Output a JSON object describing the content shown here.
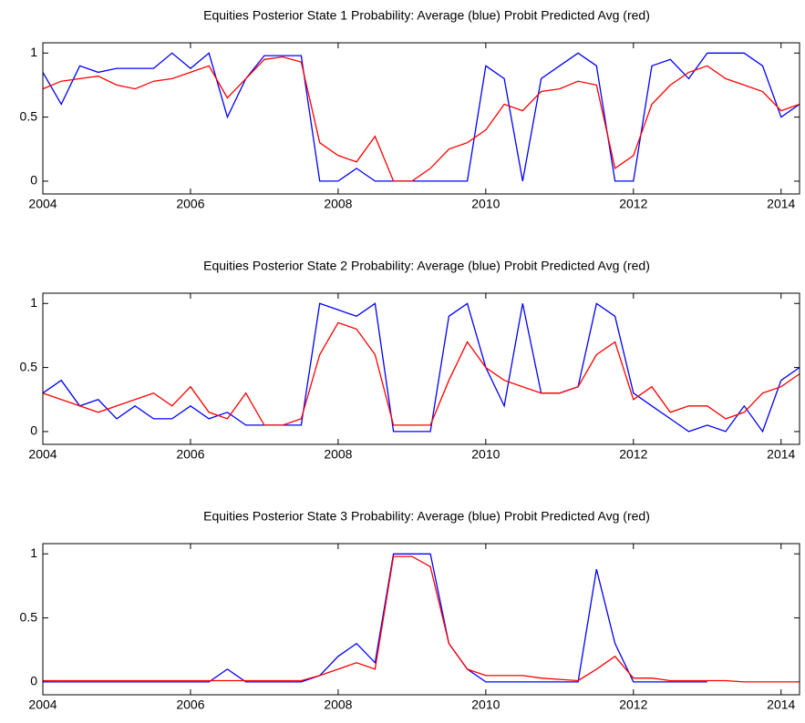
{
  "chart_data": [
    {
      "type": "line",
      "title": "Equities Posterior State 1 Probability: Average (blue) Probit Predicted Avg (red)",
      "x": [
        2004,
        2004.25,
        2004.5,
        2004.75,
        2005,
        2005.25,
        2005.5,
        2005.75,
        2006,
        2006.25,
        2006.5,
        2006.75,
        2007,
        2007.25,
        2007.5,
        2007.75,
        2008,
        2008.25,
        2008.5,
        2008.75,
        2009,
        2009.25,
        2009.5,
        2009.75,
        2010,
        2010.25,
        2010.5,
        2010.75,
        2011,
        2011.25,
        2011.5,
        2011.75,
        2012,
        2012.25,
        2012.5,
        2012.75,
        2013,
        2013.25,
        2013.5,
        2013.75,
        2014,
        2014.25
      ],
      "series": [
        {
          "name": "Average",
          "color": "#0000ff",
          "values": [
            0.85,
            0.6,
            0.9,
            0.85,
            0.88,
            0.88,
            0.88,
            1,
            0.88,
            1,
            0.5,
            0.8,
            0.98,
            0.98,
            0.98,
            0,
            0,
            0.1,
            0,
            0,
            0,
            0,
            0,
            0,
            0.9,
            0.8,
            0,
            0.8,
            0.9,
            1,
            0.9,
            0,
            0,
            0.9,
            0.95,
            0.8,
            1,
            1,
            1,
            0.9,
            0.5,
            0.6
          ]
        },
        {
          "name": "Probit Predicted Avg",
          "color": "#ff0000",
          "values": [
            0.72,
            0.78,
            0.8,
            0.82,
            0.75,
            0.72,
            0.78,
            0.8,
            0.85,
            0.9,
            0.65,
            0.8,
            0.95,
            0.97,
            0.93,
            0.3,
            0.2,
            0.15,
            0.35,
            0,
            0,
            0.1,
            0.25,
            0.3,
            0.4,
            0.6,
            0.55,
            0.7,
            0.72,
            0.78,
            0.75,
            0.1,
            0.2,
            0.6,
            0.75,
            0.85,
            0.9,
            0.8,
            0.75,
            0.7,
            0.55,
            0.6
          ]
        }
      ],
      "xlim": [
        2004,
        2014.25
      ],
      "xticks": [
        2004,
        2006,
        2008,
        2010,
        2012,
        2014
      ],
      "ylim": [
        -0.1,
        1.08
      ],
      "yticks": [
        0,
        0.5,
        1
      ],
      "grid": false
    },
    {
      "type": "line",
      "title": "Equities Posterior State 2 Probability: Average (blue) Probit Predicted Avg (red)",
      "x": [
        2004,
        2004.25,
        2004.5,
        2004.75,
        2005,
        2005.25,
        2005.5,
        2005.75,
        2006,
        2006.25,
        2006.5,
        2006.75,
        2007,
        2007.25,
        2007.5,
        2007.75,
        2008,
        2008.25,
        2008.5,
        2008.75,
        2009,
        2009.25,
        2009.5,
        2009.75,
        2010,
        2010.25,
        2010.5,
        2010.75,
        2011,
        2011.25,
        2011.5,
        2011.75,
        2012,
        2012.25,
        2012.5,
        2012.75,
        2013,
        2013.25,
        2013.5,
        2013.75,
        2014,
        2014.25
      ],
      "series": [
        {
          "name": "Average",
          "color": "#0000ff",
          "values": [
            0.3,
            0.4,
            0.2,
            0.25,
            0.1,
            0.2,
            0.1,
            0.1,
            0.2,
            0.1,
            0.15,
            0.05,
            0.05,
            0.05,
            0.05,
            1,
            0.95,
            0.9,
            1,
            0,
            0,
            0,
            0.9,
            1,
            0.5,
            0.2,
            1,
            0.3,
            0.3,
            0.35,
            1,
            0.9,
            0.3,
            0.2,
            0.1,
            0,
            0.05,
            0,
            0.2,
            0,
            0.4,
            0.5
          ]
        },
        {
          "name": "Probit Predicted Avg",
          "color": "#ff0000",
          "values": [
            0.3,
            0.25,
            0.2,
            0.15,
            0.2,
            0.25,
            0.3,
            0.2,
            0.35,
            0.15,
            0.1,
            0.3,
            0.05,
            0.05,
            0.1,
            0.6,
            0.85,
            0.8,
            0.6,
            0.05,
            0.05,
            0.05,
            0.4,
            0.7,
            0.5,
            0.4,
            0.35,
            0.3,
            0.3,
            0.35,
            0.6,
            0.7,
            0.25,
            0.35,
            0.15,
            0.2,
            0.2,
            0.1,
            0.15,
            0.3,
            0.35,
            0.45
          ]
        }
      ],
      "xlim": [
        2004,
        2014.25
      ],
      "xticks": [
        2004,
        2006,
        2008,
        2010,
        2012,
        2014
      ],
      "ylim": [
        -0.1,
        1.08
      ],
      "yticks": [
        0,
        0.5,
        1
      ],
      "grid": false
    },
    {
      "type": "line",
      "title": "Equities Posterior State 3 Probability: Average (blue) Probit Predicted Avg (red)",
      "x": [
        2004,
        2004.25,
        2004.5,
        2004.75,
        2005,
        2005.25,
        2005.5,
        2005.75,
        2006,
        2006.25,
        2006.5,
        2006.75,
        2007,
        2007.25,
        2007.5,
        2007.75,
        2008,
        2008.25,
        2008.5,
        2008.75,
        2009,
        2009.25,
        2009.5,
        2009.75,
        2010,
        2010.25,
        2010.5,
        2010.75,
        2011,
        2011.25,
        2011.5,
        2011.75,
        2012,
        2012.25,
        2012.5,
        2012.75,
        2013,
        2013.25,
        2013.5,
        2013.75,
        2014,
        2014.25
      ],
      "series": [
        {
          "name": "Average",
          "color": "#0000ff",
          "values": [
            0,
            0,
            0,
            0,
            0,
            0,
            0,
            0,
            0,
            0,
            0.1,
            0,
            0,
            0,
            0,
            0.05,
            0.2,
            0.3,
            0.15,
            1,
            1,
            1,
            0.3,
            0.1,
            0,
            0,
            0,
            0,
            0,
            0,
            0.88,
            0.3,
            0,
            0,
            0,
            0,
            0,
            null,
            null,
            null,
            null,
            null
          ]
        },
        {
          "name": "Probit Predicted Avg",
          "color": "#ff0000",
          "values": [
            0.01,
            0.01,
            0.01,
            0.01,
            0.01,
            0.01,
            0.01,
            0.01,
            0.01,
            0.01,
            0.01,
            0.01,
            0.01,
            0.01,
            0.01,
            0.05,
            0.1,
            0.15,
            0.1,
            0.98,
            0.98,
            0.9,
            0.3,
            0.1,
            0.05,
            0.05,
            0.05,
            0.03,
            0.02,
            0.01,
            0.1,
            0.2,
            0.03,
            0.03,
            0.01,
            0.01,
            0.01,
            0.01,
            0,
            0,
            0,
            0
          ]
        }
      ],
      "xlim": [
        2004,
        2014.25
      ],
      "xticks": [
        2004,
        2006,
        2008,
        2010,
        2012,
        2014
      ],
      "ylim": [
        -0.1,
        1.08
      ],
      "yticks": [
        0,
        0.5,
        1
      ],
      "grid": false
    }
  ]
}
